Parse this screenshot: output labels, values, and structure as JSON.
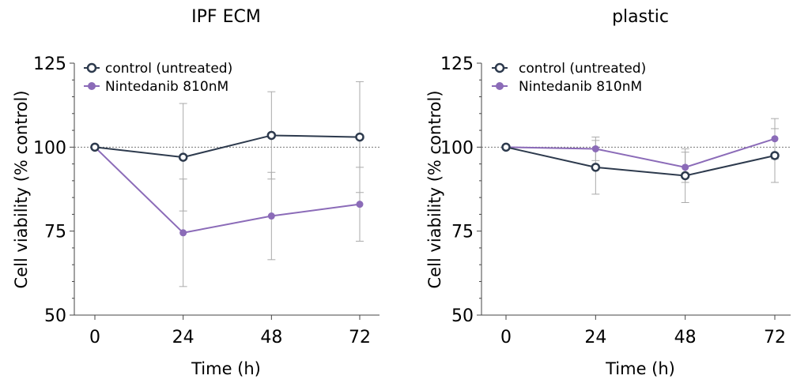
{
  "chart_data": [
    {
      "type": "line",
      "title": "IPF ECM",
      "xlabel": "Time (h)",
      "ylabel": "Cell viability (% control)",
      "x": [
        0,
        24,
        48,
        72
      ],
      "xticks": [
        "0",
        "24",
        "48",
        "72"
      ],
      "ylim": [
        50,
        125
      ],
      "yticks": [
        "50",
        "75",
        "100",
        "125"
      ],
      "reference_line": 100,
      "legend_position": "top-left",
      "series": [
        {
          "name": "control (untreated)",
          "color": "#2d3a4d",
          "marker": "open-circle",
          "values": [
            100,
            97,
            103.5,
            103
          ],
          "error": [
            0,
            16,
            13,
            16.5
          ]
        },
        {
          "name": "Nintedanib 810nM",
          "color": "#8b6bb8",
          "marker": "filled-circle",
          "values": [
            100,
            74.5,
            79.5,
            83
          ],
          "error": [
            0,
            16,
            13,
            11
          ]
        }
      ]
    },
    {
      "type": "line",
      "title": "plastic",
      "xlabel": "Time (h)",
      "ylabel": "Cell viability (% control)",
      "x": [
        0,
        24,
        48,
        72
      ],
      "xticks": [
        "0",
        "24",
        "48",
        "72"
      ],
      "ylim": [
        50,
        125
      ],
      "yticks": [
        "50",
        "75",
        "100",
        "125"
      ],
      "reference_line": 100,
      "legend_position": "top-left",
      "series": [
        {
          "name": "control (untreated)",
          "color": "#2d3a4d",
          "marker": "open-circle",
          "values": [
            100,
            94,
            91.5,
            97.5
          ],
          "error": [
            0,
            8,
            8,
            8
          ]
        },
        {
          "name": "Nintedanib 810nM",
          "color": "#8b6bb8",
          "marker": "filled-circle",
          "values": [
            100,
            99.5,
            94,
            102.5
          ],
          "error": [
            0,
            3.5,
            4.5,
            6
          ]
        }
      ]
    }
  ]
}
